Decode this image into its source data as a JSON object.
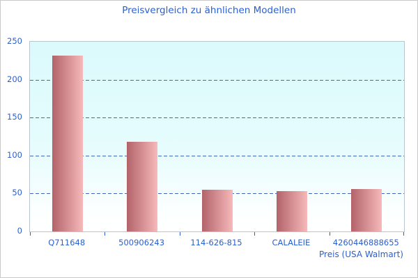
{
  "window": {
    "background": "#ffffff",
    "border_color": "#c9c9c9"
  },
  "chart_data": {
    "type": "bar",
    "title": "Preisvergleich zu ähnlichen Modellen",
    "xlabel": "Preis (USA Walmart)",
    "ylabel": "",
    "categories": [
      "Q711648",
      "500906243",
      "114-626-815",
      "CALALEIE",
      "4260446888655"
    ],
    "values": [
      232,
      118,
      55,
      53,
      56
    ],
    "ylim": [
      0,
      250
    ],
    "yticks": [
      0,
      50,
      100,
      150,
      200,
      250
    ],
    "grid": "horizontal dashed lines at 50, 100, 150, 200",
    "legend": "none",
    "colors": {
      "title_text": "#2a5fd0",
      "axis_text": "#2a5fd0",
      "gridline": "#3a66c8",
      "tick": "#2a5fd0",
      "bar_gradient_left": "#b2636a",
      "bar_gradient_right": "#f6b9ba",
      "plot_bg_top": "#dbfafc",
      "plot_bg_bottom": "#ffffff",
      "plot_border": "#b9c6d0"
    }
  }
}
